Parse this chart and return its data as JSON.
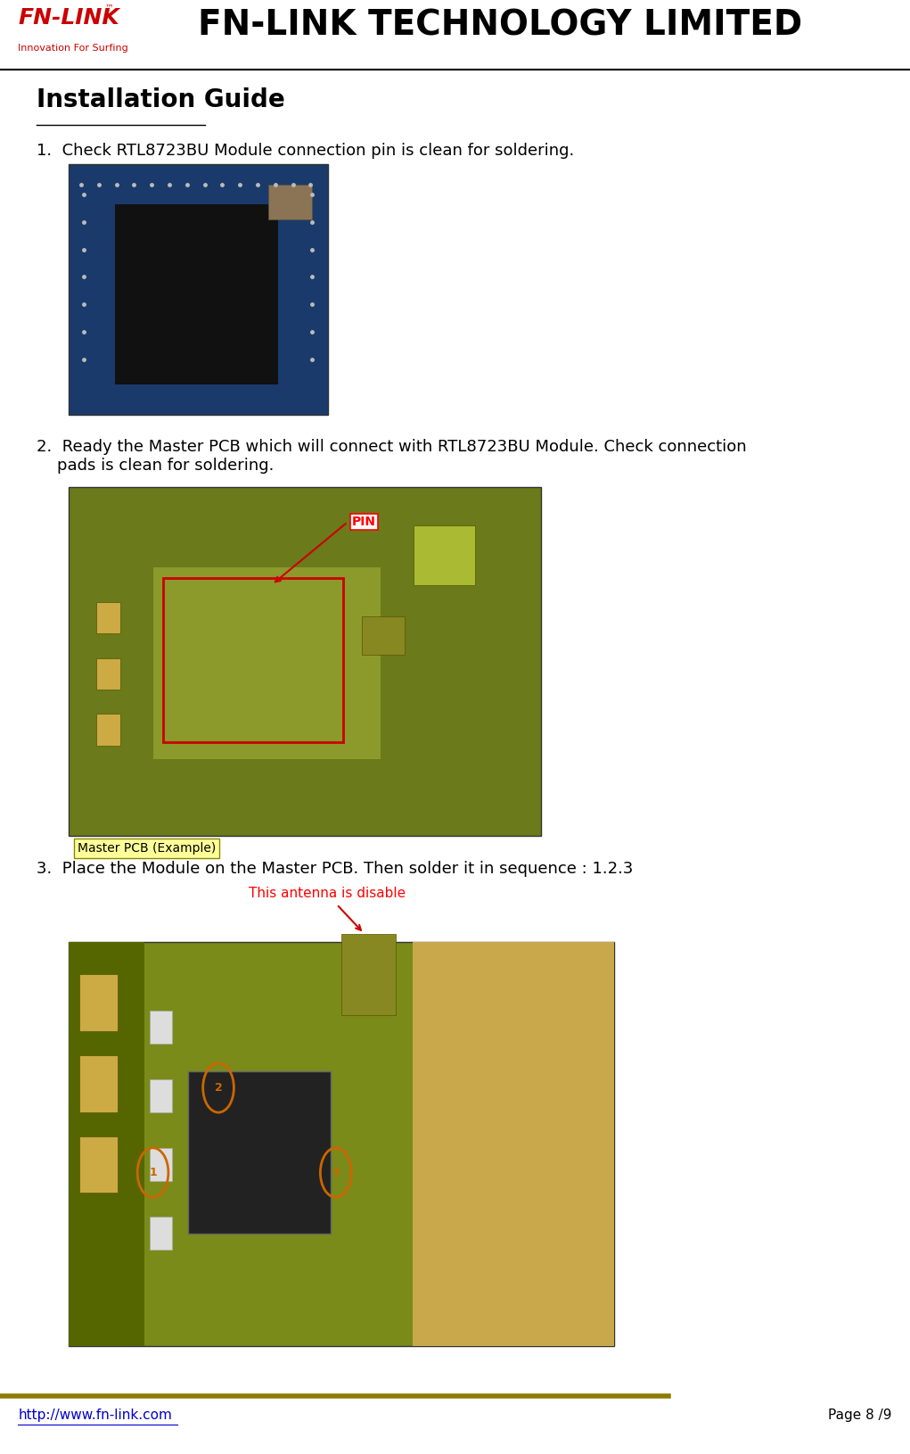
{
  "page_width": 10.21,
  "page_height": 16.3,
  "background_color": "#ffffff",
  "header_line_color": "#000000",
  "footer_line_color": "#8B7D00",
  "header_title": "FN-LINK TECHNOLOGY LIMITED",
  "header_title_color": "#000000",
  "header_title_fontsize": 28,
  "header_title_fontweight": "bold",
  "logo_text_fn": "FN-LINK",
  "logo_text_sub": "Innovation For Surfing",
  "logo_color": "#cc0000",
  "section_title": "Installation Guide",
  "section_title_fontsize": 20,
  "section_title_fontweight": "bold",
  "step1_text": "1.  Check RTL8723BU Module connection pin is clean for soldering.",
  "step2_text": "2.  Ready the Master PCB which will connect with RTL8723BU Module. Check connection\n    pads is clean for soldering.",
  "step3_text": "3.  Place the Module on the Master PCB. Then solder it in sequence : 1.2.3",
  "step_fontsize": 13,
  "footer_url": "http://www.fn-link.com",
  "footer_page": "Page 8 /9",
  "footer_fontsize": 11,
  "pin_label": "PIN",
  "pin_label_color": "#ff0000",
  "master_pcb_label": "Master PCB (Example)",
  "master_pcb_label_color": "#000000",
  "master_pcb_bg": "#ffff99",
  "antenna_label": "This antenna is disable",
  "antenna_label_color": "#ff0000"
}
